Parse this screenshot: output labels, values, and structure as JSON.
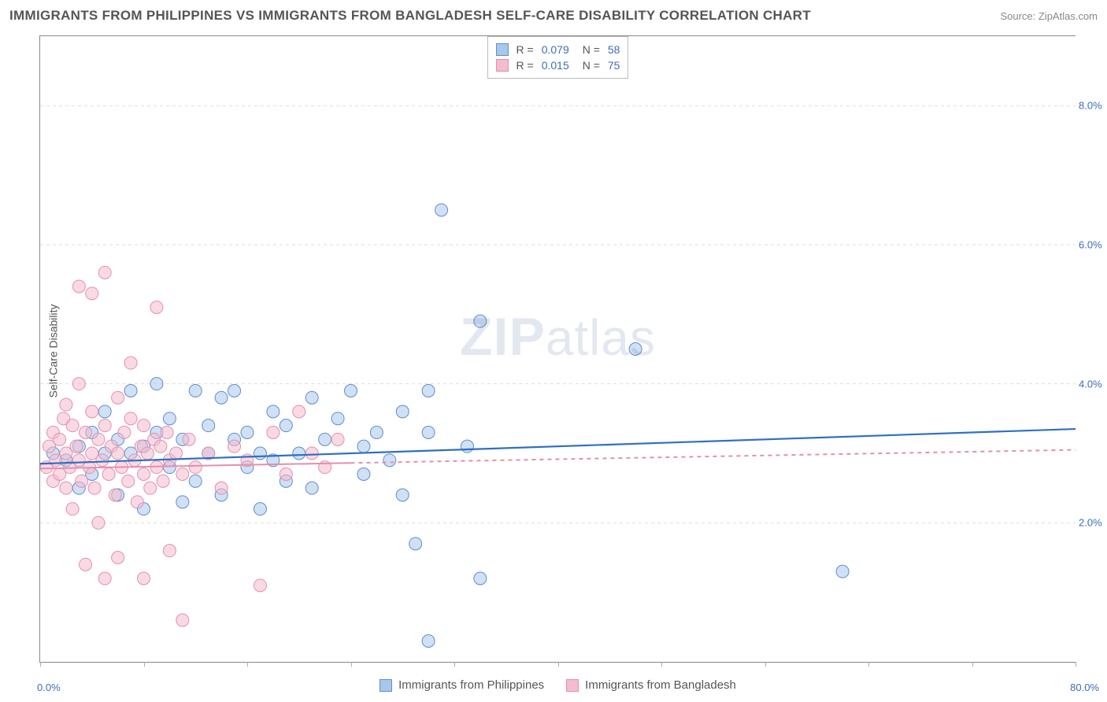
{
  "title": "IMMIGRANTS FROM PHILIPPINES VS IMMIGRANTS FROM BANGLADESH SELF-CARE DISABILITY CORRELATION CHART",
  "source": "Source: ZipAtlas.com",
  "ylabel": "Self-Care Disability",
  "watermark_bold": "ZIP",
  "watermark_rest": "atlas",
  "chart": {
    "type": "scatter-with-regression",
    "xlim": [
      0,
      80
    ],
    "ylim": [
      0,
      9
    ],
    "xtick_labels": {
      "left": "0.0%",
      "right": "80.0%"
    },
    "ytick_positions": [
      2,
      4,
      6,
      8
    ],
    "ytick_labels": [
      "2.0%",
      "4.0%",
      "6.0%",
      "8.0%"
    ],
    "xtick_positions": [
      0,
      8,
      16,
      24,
      32,
      40,
      48,
      56,
      64,
      72,
      80
    ],
    "background_color": "#ffffff",
    "grid_color": "#dddddd",
    "axis_color": "#888888",
    "tick_label_color": "#3b6fb6",
    "marker_radius": 8,
    "marker_opacity": 0.55,
    "series": [
      {
        "name": "Immigrants from Philippines",
        "color_fill": "#a9c7ec",
        "color_stroke": "#5e8fc9",
        "line_color": "#2f6fc2",
        "line_width": 2.2,
        "line_dash": "none",
        "legend_swatch_fill": "#a9c7ec",
        "legend_swatch_stroke": "#5e8fc9",
        "R_label": "R =",
        "R": "0.079",
        "N_label": "N =",
        "N": "58",
        "regression": {
          "x1": 0,
          "y1": 2.85,
          "x2": 80,
          "y2": 3.35
        },
        "regression_solid_to_x": 80,
        "points": [
          [
            1,
            3.0
          ],
          [
            2,
            2.9
          ],
          [
            3,
            3.1
          ],
          [
            3,
            2.5
          ],
          [
            4,
            3.3
          ],
          [
            4,
            2.7
          ],
          [
            5,
            3.0
          ],
          [
            5,
            3.6
          ],
          [
            6,
            2.4
          ],
          [
            6,
            3.2
          ],
          [
            7,
            3.0
          ],
          [
            7,
            3.9
          ],
          [
            8,
            3.1
          ],
          [
            8,
            2.2
          ],
          [
            9,
            3.3
          ],
          [
            9,
            4.0
          ],
          [
            10,
            2.8
          ],
          [
            10,
            3.5
          ],
          [
            11,
            2.3
          ],
          [
            11,
            3.2
          ],
          [
            12,
            3.9
          ],
          [
            12,
            2.6
          ],
          [
            13,
            3.4
          ],
          [
            13,
            3.0
          ],
          [
            14,
            3.8
          ],
          [
            14,
            2.4
          ],
          [
            15,
            3.2
          ],
          [
            15,
            3.9
          ],
          [
            16,
            2.8
          ],
          [
            16,
            3.3
          ],
          [
            17,
            3.0
          ],
          [
            17,
            2.2
          ],
          [
            18,
            3.6
          ],
          [
            18,
            2.9
          ],
          [
            19,
            3.4
          ],
          [
            19,
            2.6
          ],
          [
            20,
            3.0
          ],
          [
            21,
            3.8
          ],
          [
            21,
            2.5
          ],
          [
            22,
            3.2
          ],
          [
            23,
            3.5
          ],
          [
            24,
            3.9
          ],
          [
            25,
            2.7
          ],
          [
            25,
            3.1
          ],
          [
            26,
            3.3
          ],
          [
            27,
            2.9
          ],
          [
            28,
            3.6
          ],
          [
            28,
            2.4
          ],
          [
            29,
            1.7
          ],
          [
            30,
            3.9
          ],
          [
            30,
            0.3
          ],
          [
            31,
            6.5
          ],
          [
            33,
            3.1
          ],
          [
            34,
            1.2
          ],
          [
            34,
            4.9
          ],
          [
            46,
            4.5
          ],
          [
            62,
            1.3
          ],
          [
            30,
            3.3
          ]
        ]
      },
      {
        "name": "Immigrants from Bangladesh",
        "color_fill": "#f4bccd",
        "color_stroke": "#e58fab",
        "line_color": "#e58fab",
        "line_width": 2.0,
        "line_dash": "4 4",
        "legend_swatch_fill": "#f4bccd",
        "legend_swatch_stroke": "#e58fab",
        "R_label": "R =",
        "R": "0.015",
        "N_label": "N =",
        "N": "75",
        "regression": {
          "x1": 0,
          "y1": 2.78,
          "x2": 80,
          "y2": 3.05
        },
        "regression_solid_to_x": 24,
        "points": [
          [
            0.5,
            2.8
          ],
          [
            0.7,
            3.1
          ],
          [
            1,
            2.6
          ],
          [
            1,
            3.3
          ],
          [
            1.2,
            2.9
          ],
          [
            1.5,
            2.7
          ],
          [
            1.5,
            3.2
          ],
          [
            1.8,
            3.5
          ],
          [
            2,
            2.5
          ],
          [
            2,
            3.0
          ],
          [
            2,
            3.7
          ],
          [
            2.3,
            2.8
          ],
          [
            2.5,
            3.4
          ],
          [
            2.5,
            2.2
          ],
          [
            2.8,
            3.1
          ],
          [
            3,
            2.9
          ],
          [
            3,
            4.0
          ],
          [
            3,
            5.4
          ],
          [
            3.2,
            2.6
          ],
          [
            3.5,
            3.3
          ],
          [
            3.5,
            1.4
          ],
          [
            3.8,
            2.8
          ],
          [
            4,
            3.0
          ],
          [
            4,
            3.6
          ],
          [
            4,
            5.3
          ],
          [
            4.2,
            2.5
          ],
          [
            4.5,
            3.2
          ],
          [
            4.5,
            2.0
          ],
          [
            4.8,
            2.9
          ],
          [
            5,
            3.4
          ],
          [
            5,
            1.2
          ],
          [
            5,
            5.6
          ],
          [
            5.3,
            2.7
          ],
          [
            5.5,
            3.1
          ],
          [
            5.8,
            2.4
          ],
          [
            6,
            3.0
          ],
          [
            6,
            3.8
          ],
          [
            6,
            1.5
          ],
          [
            6.3,
            2.8
          ],
          [
            6.5,
            3.3
          ],
          [
            6.8,
            2.6
          ],
          [
            7,
            3.5
          ],
          [
            7,
            4.3
          ],
          [
            7.3,
            2.9
          ],
          [
            7.5,
            2.3
          ],
          [
            7.8,
            3.1
          ],
          [
            8,
            2.7
          ],
          [
            8,
            3.4
          ],
          [
            8,
            1.2
          ],
          [
            8.3,
            3.0
          ],
          [
            8.5,
            2.5
          ],
          [
            8.8,
            3.2
          ],
          [
            9,
            2.8
          ],
          [
            9,
            5.1
          ],
          [
            9.3,
            3.1
          ],
          [
            9.5,
            2.6
          ],
          [
            9.8,
            3.3
          ],
          [
            10,
            2.9
          ],
          [
            10,
            1.6
          ],
          [
            10.5,
            3.0
          ],
          [
            11,
            2.7
          ],
          [
            11,
            0.6
          ],
          [
            11.5,
            3.2
          ],
          [
            12,
            2.8
          ],
          [
            13,
            3.0
          ],
          [
            14,
            2.5
          ],
          [
            15,
            3.1
          ],
          [
            16,
            2.9
          ],
          [
            17,
            1.1
          ],
          [
            18,
            3.3
          ],
          [
            19,
            2.7
          ],
          [
            20,
            3.6
          ],
          [
            21,
            3.0
          ],
          [
            22,
            2.8
          ],
          [
            23,
            3.2
          ]
        ]
      }
    ]
  },
  "legend_top_labels": {
    "R_prefix": "R =",
    "N_prefix": "N ="
  }
}
